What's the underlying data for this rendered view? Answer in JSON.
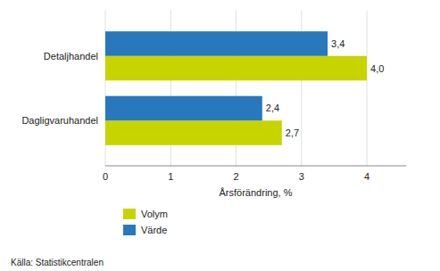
{
  "chart_data": {
    "type": "bar",
    "orientation": "horizontal",
    "categories": [
      "Dagligvaruhandel",
      "Detaljhandel"
    ],
    "series": [
      {
        "name": "Volym",
        "color": "#c8d400",
        "values": [
          2.7,
          4.0
        ],
        "value_labels": [
          "2,7",
          "4,0"
        ]
      },
      {
        "name": "Värde",
        "color": "#2878be",
        "values": [
          2.4,
          3.4
        ],
        "value_labels": [
          "2,4",
          "3,4"
        ]
      }
    ],
    "x_label": "Årsförändring, %",
    "xlim": [
      0,
      4.6
    ],
    "xticks": [
      0,
      1,
      2,
      3,
      4
    ],
    "grid": true,
    "legend": "bottom",
    "data_labels": true,
    "annotations": [
      "Källa: Statistikcentralen"
    ]
  }
}
